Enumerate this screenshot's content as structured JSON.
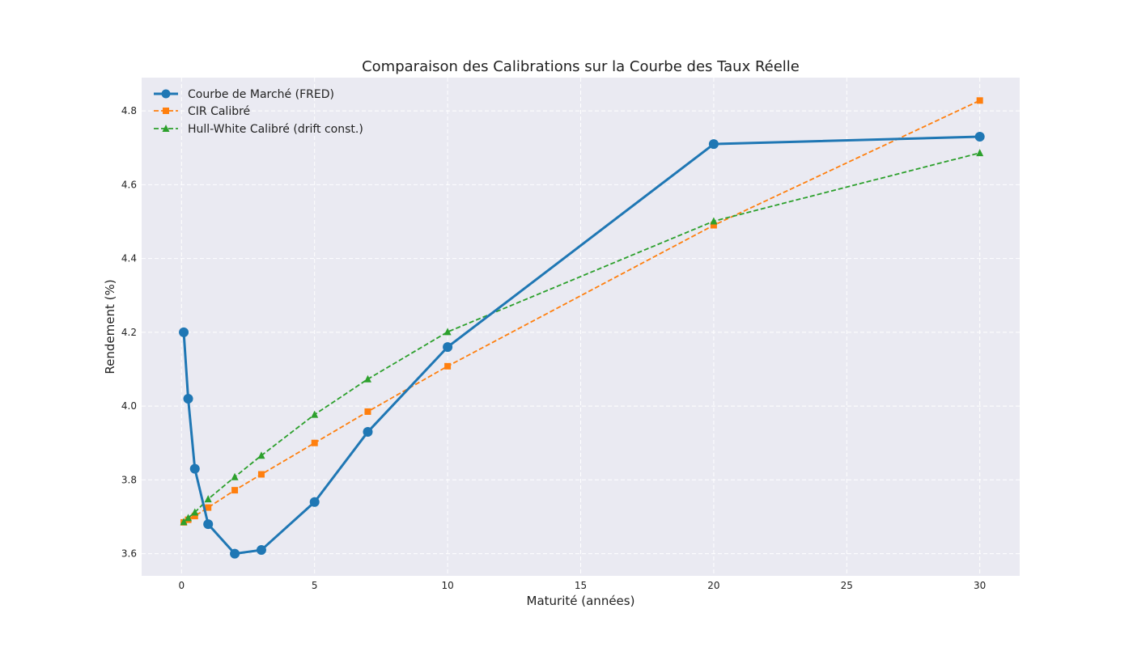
{
  "chart_data": {
    "type": "line",
    "title": "Comparaison des Calibrations sur la Courbe des Taux Réelle",
    "xlabel": "Maturité (années)",
    "ylabel": "Rendement (%)",
    "xlim": [
      -1.5,
      31.5
    ],
    "ylim": [
      3.54,
      4.89
    ],
    "xticks": [
      0,
      5,
      10,
      15,
      20,
      25,
      30
    ],
    "yticks": [
      3.6,
      3.8,
      4.0,
      4.2,
      4.4,
      4.6,
      4.8
    ],
    "xtick_labels": [
      "0",
      "5",
      "10",
      "15",
      "20",
      "25",
      "30"
    ],
    "ytick_labels": [
      "3.6",
      "3.8",
      "4.0",
      "4.2",
      "4.4",
      "4.6",
      "4.8"
    ],
    "grid": true,
    "legend_position": "top-left",
    "background_color": "#eaeaf2",
    "series": [
      {
        "name": "Courbe de Marché (FRED)",
        "color": "#1f77b4",
        "line_style": "solid",
        "marker": "circle",
        "x": [
          0.083,
          0.25,
          0.5,
          1,
          2,
          3,
          5,
          7,
          10,
          20,
          30
        ],
        "y": [
          4.2,
          4.02,
          3.83,
          3.68,
          3.6,
          3.61,
          3.74,
          3.93,
          4.16,
          4.71,
          4.73
        ]
      },
      {
        "name": "CIR Calibré",
        "color": "#ff7f0e",
        "line_style": "dashed",
        "marker": "square",
        "x": [
          0.083,
          0.25,
          0.5,
          1,
          2,
          3,
          5,
          7,
          10,
          20,
          30
        ],
        "y": [
          3.685,
          3.692,
          3.702,
          3.725,
          3.772,
          3.815,
          3.9,
          3.985,
          4.108,
          4.49,
          4.828
        ]
      },
      {
        "name": "Hull-White Calibré (drift const.)",
        "color": "#2ca02c",
        "line_style": "dashed",
        "marker": "triangle",
        "x": [
          0.083,
          0.25,
          0.5,
          1,
          2,
          3,
          5,
          7,
          10,
          20,
          30
        ],
        "y": [
          3.686,
          3.697,
          3.712,
          3.748,
          3.808,
          3.866,
          3.977,
          4.073,
          4.201,
          4.501,
          4.686
        ]
      }
    ]
  }
}
